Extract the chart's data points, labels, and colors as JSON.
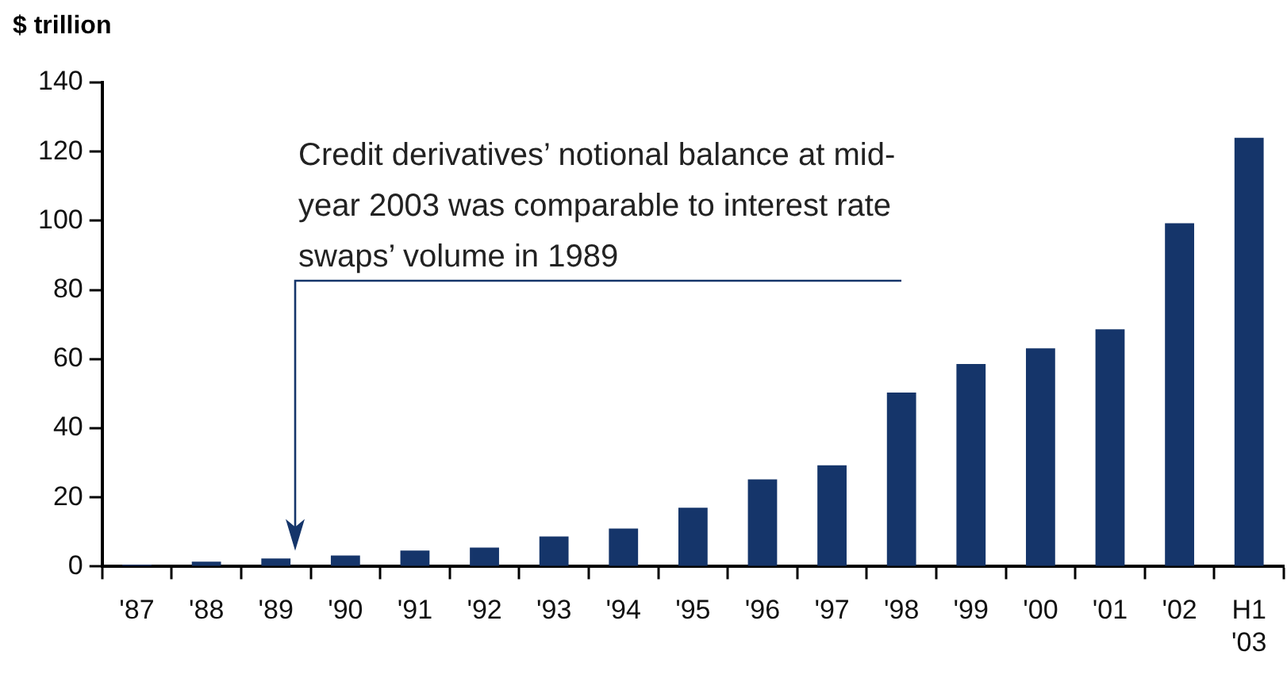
{
  "chart_data": {
    "type": "bar",
    "ylabel": "$ trillion",
    "categories": [
      "'87",
      "'88",
      "'89",
      "'90",
      "'91",
      "'92",
      "'93",
      "'94",
      "'95",
      "'96",
      "'97",
      "'98",
      "'99",
      "'00",
      "'01",
      "'02",
      "H1 '03"
    ],
    "values": [
      0.5,
      1.4,
      2.3,
      3.2,
      4.6,
      5.5,
      8.7,
      11,
      17,
      25.2,
      29.3,
      50.3,
      58.6,
      63.1,
      68.6,
      99.3,
      124
    ],
    "color": "#15356a",
    "ylim": [
      0,
      140
    ],
    "yticks": [
      0,
      20,
      40,
      60,
      80,
      100,
      120,
      140
    ],
    "grid": false,
    "legend": false,
    "annotations": [
      "Credit derivatives’ notional balance at mid-year 2003 was comparable to interest rate swaps’ volume in 1989"
    ]
  }
}
